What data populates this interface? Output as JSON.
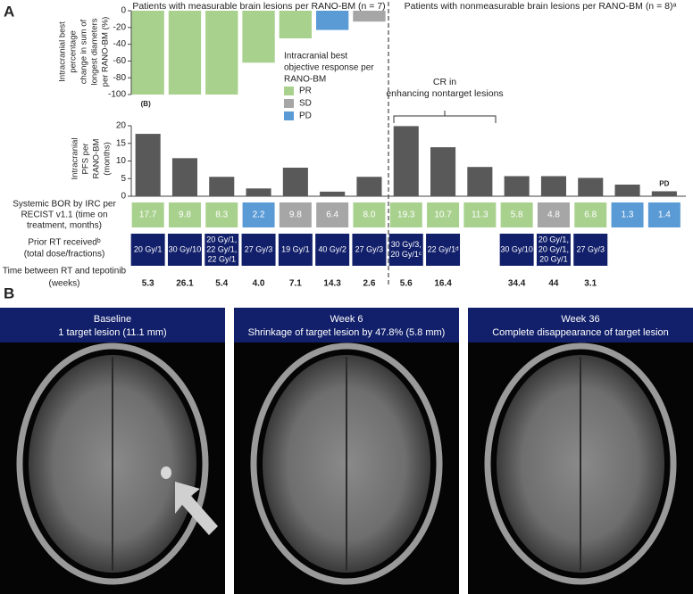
{
  "panel_labels": [
    "A",
    "B"
  ],
  "chart_data": [
    {
      "type": "bar",
      "header_left": "Patients with measurable brain lesions per RANO-BM (n = 7)",
      "header_right": "Patients with nonmeasurable brain lesions per RANO-BM (n = 8)ᵃ",
      "y_label": [
        "Intracranial best",
        "percentage",
        "change in sum of",
        "longest diameters",
        "per RANO-BM (%)"
      ],
      "values": [
        -100,
        -100,
        -100,
        -62,
        -33,
        -23,
        -13
      ],
      "colors": [
        "#a9d18e",
        "#a9d18e",
        "#a9d18e",
        "#a9d18e",
        "#a9d18e",
        "#5b9bd5",
        "#a6a6a6"
      ],
      "ylim": [
        -100,
        0
      ],
      "yticks": [
        0,
        -20,
        -40,
        -60,
        -80,
        -100
      ],
      "annotation": "(B)",
      "legend": {
        "title": [
          "Intracranial best",
          "objective response per",
          "RANO-BM"
        ],
        "items": [
          {
            "name": "PR",
            "color": "#a9d18e"
          },
          {
            "name": "SD",
            "color": "#a6a6a6"
          },
          {
            "name": "PD",
            "color": "#5b9bd5"
          }
        ]
      }
    },
    {
      "type": "bar",
      "y_label": [
        "Intracranial",
        "PFS per",
        "RANO-BM",
        "(months)"
      ],
      "values": [
        17.7,
        10.8,
        5.5,
        2.2,
        8.1,
        1.3,
        5.5,
        19.9,
        13.9,
        8.3,
        5.7,
        5.7,
        5.2,
        3.3,
        1.4
      ],
      "color": "#595959",
      "ylim": [
        0,
        20
      ],
      "yticks": [
        0,
        5,
        10,
        15,
        20
      ],
      "end_label": "PD",
      "bracket_label": [
        "CR in",
        "enhancing nontarget lesions"
      ]
    }
  ],
  "table": {
    "rows": [
      {
        "label": [
          "Systemic BOR by IRC per",
          "RECIST v1.1 (time on",
          "treatment, months)"
        ],
        "cells": [
          "17.7",
          "9.8",
          "8.3",
          "2.2",
          "9.8",
          "6.4",
          "8.0",
          "19.3",
          "10.7",
          "11.3",
          "5.8",
          "4.8",
          "6.8",
          "1.3",
          "1.4"
        ],
        "colors": [
          "#a9d18e",
          "#a9d18e",
          "#a9d18e",
          "#5b9bd5",
          "#a6a6a6",
          "#a6a6a6",
          "#a9d18e",
          "#a9d18e",
          "#a9d18e",
          "#a9d18e",
          "#a9d18e",
          "#a6a6a6",
          "#a9d18e",
          "#5b9bd5",
          "#5b9bd5"
        ]
      },
      {
        "label": [
          "Prior RT receivedᵇ",
          "(total dose/fractions)"
        ],
        "cells": [
          [
            "20 Gy/1"
          ],
          [
            "30 Gy/10"
          ],
          [
            "20 Gy/1,",
            "22 Gy/1,",
            "22 Gy/1"
          ],
          [
            "27 Gy/3"
          ],
          [
            "19 Gy/1"
          ],
          [
            "40 Gy/2"
          ],
          [
            "27 Gy/3"
          ],
          [
            "30 Gy/3,",
            "20 Gy/1ᶜ"
          ],
          [
            "22 Gy/1ᵈ"
          ],
          null,
          [
            "30 Gy/10"
          ],
          [
            "20 Gy/1,",
            "20 Gy/1,",
            "20 Gy/1"
          ],
          [
            "27 Gy/3"
          ],
          null,
          null
        ],
        "color": "#12206b"
      },
      {
        "label": [
          "Time between RT and tepotinib",
          "(weeks)"
        ],
        "cells": [
          "5.3",
          "26.1",
          "5.4",
          "4.0",
          "7.1",
          "14.3",
          "2.6",
          "5.6",
          "16.4",
          null,
          "34.4",
          "44",
          "3.1",
          null,
          null
        ]
      }
    ]
  },
  "panel_b": [
    {
      "caption": [
        "Baseline",
        "1 target lesion (11.1 mm)"
      ]
    },
    {
      "caption": [
        "Week 6",
        "Shrinkage of target lesion by 47.8% (5.8 mm)"
      ]
    },
    {
      "caption": [
        "Week 36",
        "Complete disappearance of target lesion"
      ]
    }
  ]
}
